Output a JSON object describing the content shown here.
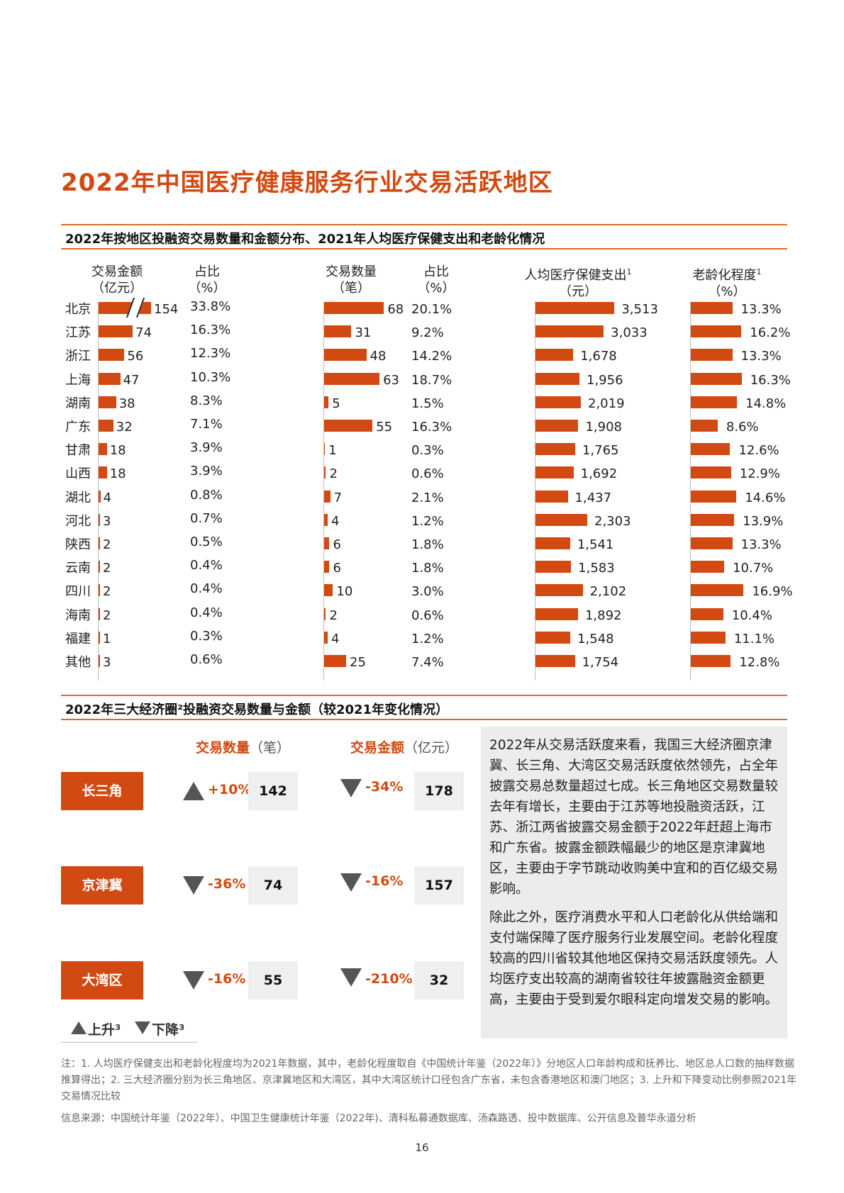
{
  "page_title": "2022年中国医疗健康服务行业交易活跃地区",
  "section1": {
    "title": "2022年按地区投融资交易数量和金额分布、2021年人均医疗保健支出和老龄化情况",
    "headers": {
      "amount": [
        "交易金额",
        "（亿元）"
      ],
      "amount_pct": [
        "占比",
        "（%）"
      ],
      "count": [
        "交易数量",
        "（笔）"
      ],
      "count_pct": [
        "占比",
        "（%）"
      ],
      "spend": [
        "人均医疗保健支出",
        "（元）"
      ],
      "spend_sup": "1",
      "aging": [
        "老龄化程度",
        "（%）"
      ],
      "aging_sup": "1"
    }
  },
  "chart_data": {
    "type": "bar",
    "categories": [
      "北京",
      "江苏",
      "浙江",
      "上海",
      "湖南",
      "广东",
      "甘肃",
      "山西",
      "湖北",
      "河北",
      "陕西",
      "云南",
      "四川",
      "海南",
      "福建",
      "其他"
    ],
    "series": [
      {
        "name": "交易金额（亿元）",
        "values": [
          154,
          74,
          56,
          47,
          38,
          32,
          18,
          18,
          4,
          3,
          2,
          2,
          2,
          2,
          1,
          3
        ],
        "labels": [
          "154",
          "74",
          "56",
          "47",
          "38",
          "32",
          "18",
          "18",
          "4",
          "3",
          "2",
          "2",
          "2",
          "2",
          "1",
          "3"
        ],
        "axis_break": "北京"
      },
      {
        "name": "占比（%）",
        "labels": [
          "33.8%",
          "16.3%",
          "12.3%",
          "10.3%",
          "8.3%",
          "7.1%",
          "3.9%",
          "3.9%",
          "0.8%",
          "0.7%",
          "0.5%",
          "0.4%",
          "0.4%",
          "0.4%",
          "0.3%",
          "0.6%"
        ]
      },
      {
        "name": "交易数量（笔）",
        "values": [
          68,
          31,
          48,
          63,
          5,
          55,
          1,
          2,
          7,
          4,
          6,
          6,
          10,
          2,
          4,
          25
        ],
        "labels": [
          "68",
          "31",
          "48",
          "63",
          "5",
          "55",
          "1",
          "2",
          "7",
          "4",
          "6",
          "6",
          "10",
          "2",
          "4",
          "25"
        ]
      },
      {
        "name": "占比（%）",
        "labels": [
          "20.1%",
          "9.2%",
          "14.2%",
          "18.7%",
          "1.5%",
          "16.3%",
          "0.3%",
          "0.6%",
          "2.1%",
          "1.2%",
          "1.8%",
          "1.8%",
          "3.0%",
          "0.6%",
          "1.2%",
          "7.4%"
        ]
      },
      {
        "name": "人均医疗保健支出（元）",
        "values": [
          3513,
          3033,
          1678,
          1956,
          2019,
          1908,
          1765,
          1692,
          1437,
          2303,
          1541,
          1583,
          2102,
          1892,
          1548,
          1754
        ],
        "labels": [
          "3,513",
          "3,033",
          "1,678",
          "1,956",
          "2,019",
          "1,908",
          "1,765",
          "1,692",
          "1,437",
          "2,303",
          "1,541",
          "1,583",
          "2,102",
          "1,892",
          "1,548",
          "1,754"
        ]
      },
      {
        "name": "老龄化程度（%）",
        "values": [
          13.3,
          16.2,
          13.3,
          16.3,
          14.8,
          8.6,
          12.6,
          12.9,
          14.6,
          13.9,
          13.3,
          10.7,
          16.9,
          10.4,
          11.1,
          12.8
        ],
        "labels": [
          "13.3%",
          "16.2%",
          "13.3%",
          "16.3%",
          "14.8%",
          "8.6%",
          "12.6%",
          "12.9%",
          "14.6%",
          "13.9%",
          "13.3%",
          "10.7%",
          "16.9%",
          "10.4%",
          "11.1%",
          "12.8%"
        ]
      }
    ],
    "colors": {
      "bar": "#d24a12"
    }
  },
  "section2": {
    "title": "2022年三大经济圈²投融资交易数量与金额（较2021年变化情况）",
    "col_count": {
      "label": "交易数量",
      "unit": "（笔）"
    },
    "col_amount": {
      "label": "交易金额",
      "unit": "（亿元）"
    },
    "regions": [
      {
        "name": "长三角",
        "count_dir": "up",
        "count_chg": "+10%",
        "count": "142",
        "amount_dir": "down",
        "amount_chg": "-34%",
        "amount": "178"
      },
      {
        "name": "京津冀",
        "count_dir": "down",
        "count_chg": "-36%",
        "count": "74",
        "amount_dir": "down",
        "amount_chg": "-16%",
        "amount": "157"
      },
      {
        "name": "大湾区",
        "count_dir": "down",
        "count_chg": "-16%",
        "count": "55",
        "amount_dir": "down",
        "amount_chg": "-210%",
        "amount": "32"
      }
    ],
    "legend": {
      "up": "上升³",
      "down": "下降³"
    },
    "paragraphs": [
      "2022年从交易活跃度来看，我国三大经济圈京津冀、长三角、大湾区交易活跃度依然领先，占全年披露交易总数量超过七成。长三角地区交易数量较去年有增长，主要由于江苏等地投融资活跃，江苏、浙江两省披露交易金额于2022年赶超上海市和广东省。披露金额跌幅最少的地区是京津冀地区，主要由于字节跳动收购美中宜和的百亿级交易影响。",
      "除此之外，医疗消费水平和人口老龄化从供给端和支付端保障了医疗服务行业发展空间。老龄化程度较高的四川省较其他地区保持交易活跃度领先。人均医疗支出较高的湖南省较往年披露融资金额更高，主要由于受到爱尔眼科定向增发交易的影响。"
    ]
  },
  "notes": {
    "footnote": "注：1. 人均医疗保健支出和老龄化程度均为2021年数据，其中，老龄化程度取自《中国统计年鉴（2022年）》分地区人口年龄构成和抚养比、地区总人口数的抽样数据推算得出；2. 三大经济圈分别为长三角地区、京津冀地区和大湾区，其中大湾区统计口径包含广东省，未包含香港地区和澳门地区；3. 上升和下降变动比例参照2021年交易情况比较",
    "source": "信息来源：中国统计年鉴（2022年）、中国卫生健康统计年鉴（2022年)、清科私募通数据库、汤森路透、投中数据库、公开信息及普华永道分析"
  },
  "page_number": "16"
}
